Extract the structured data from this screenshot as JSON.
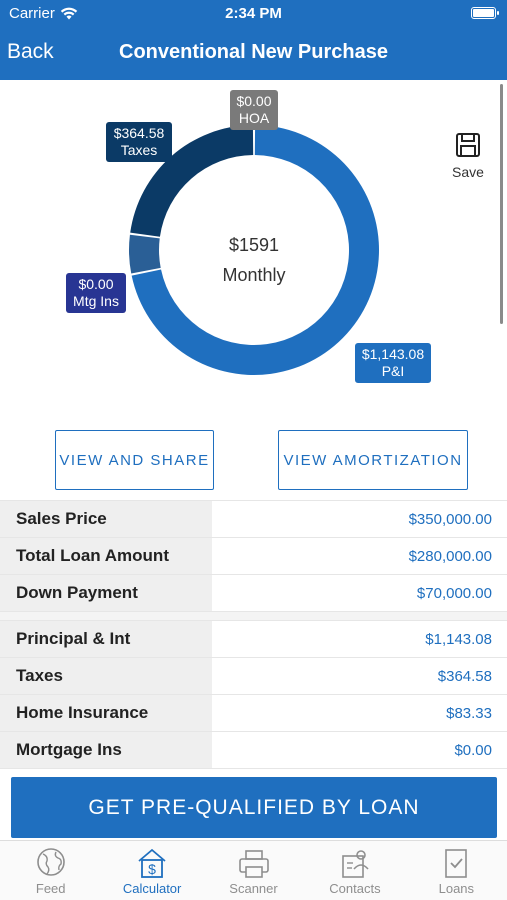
{
  "status": {
    "carrier": "Carrier",
    "time": "2:34 PM"
  },
  "nav": {
    "back": "Back",
    "title": "Conventional New Purchase"
  },
  "chart": {
    "center_amount": "$1591",
    "center_label": "Monthly",
    "slices": [
      {
        "key": "hoa",
        "amount": "$0.00",
        "label": "HOA",
        "value": 0,
        "color": "#7a7a7a"
      },
      {
        "key": "pi",
        "amount": "$1,143.08",
        "label": "P&I",
        "value": 1143.08,
        "color": "#1f6fbf"
      },
      {
        "key": "mtg",
        "amount": "$0.00",
        "label": "Mtg Ins",
        "value": 0,
        "color": "#283593"
      },
      {
        "key": "ins",
        "amount": "",
        "label": "",
        "value": 83.33,
        "color": "#2a5f96"
      },
      {
        "key": "taxes",
        "amount": "$364.58",
        "label": "Taxes",
        "value": 364.58,
        "color": "#0b3a66"
      }
    ]
  },
  "save_label": "Save",
  "buttons": {
    "share": "VIEW AND SHARE",
    "amort": "VIEW AMORTIZATION"
  },
  "loan_rows": [
    {
      "label": "Sales Price",
      "value": "$350,000.00"
    },
    {
      "label": "Total Loan Amount",
      "value": "$280,000.00"
    },
    {
      "label": "Down Payment",
      "value": "$70,000.00"
    }
  ],
  "payment_rows": [
    {
      "label": "Principal & Int",
      "value": "$1,143.08"
    },
    {
      "label": "Taxes",
      "value": "$364.58"
    },
    {
      "label": "Home Insurance",
      "value": "$83.33"
    },
    {
      "label": "Mortgage Ins",
      "value": "$0.00"
    }
  ],
  "cta": "GET PRE-QUALIFIED BY LOAN",
  "tabs": [
    {
      "label": "Feed",
      "icon": "globe-icon"
    },
    {
      "label": "Calculator",
      "icon": "calculator-icon"
    },
    {
      "label": "Scanner",
      "icon": "printer-icon"
    },
    {
      "label": "Contacts",
      "icon": "contacts-icon"
    },
    {
      "label": "Loans",
      "icon": "document-check-icon"
    }
  ],
  "colors": {
    "brand": "#1f6fbf"
  }
}
